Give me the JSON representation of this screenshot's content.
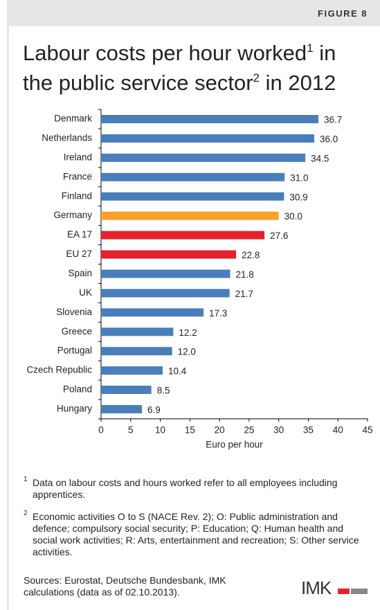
{
  "header": {
    "figure": "FIGURE 8"
  },
  "chart_data": {
    "type": "bar",
    "orientation": "horizontal",
    "title": {
      "part1": "Labour costs per hour worked",
      "note1": "1",
      "part2": "in",
      "part3": "the public service sector",
      "note2": "2",
      "part4": "in 2012"
    },
    "categories": [
      "Denmark",
      "Netherlands",
      "Ireland",
      "France",
      "Finland",
      "Germany",
      "EA 17",
      "EU 27",
      "Spain",
      "UK",
      "Slovenia",
      "Greece",
      "Portugal",
      "Czech Republic",
      "Poland",
      "Hungary"
    ],
    "values": [
      36.7,
      36.0,
      34.5,
      31.0,
      30.9,
      30.0,
      27.6,
      22.8,
      21.8,
      21.7,
      17.3,
      12.2,
      12.0,
      10.4,
      8.5,
      6.9
    ],
    "value_labels": [
      "36.7",
      "36.0",
      "34.5",
      "31.0",
      "30.9",
      "30.0",
      "27.6",
      "22.8",
      "21.8",
      "21.7",
      "17.3",
      "12.2",
      "12.0",
      "10.4",
      "8.5",
      "6.9"
    ],
    "colors": [
      "#4a7ebb",
      "#4a7ebb",
      "#4a7ebb",
      "#4a7ebb",
      "#4a7ebb",
      "#f7a02a",
      "#e5222c",
      "#e5222c",
      "#4a7ebb",
      "#4a7ebb",
      "#4a7ebb",
      "#4a7ebb",
      "#4a7ebb",
      "#4a7ebb",
      "#4a7ebb",
      "#4a7ebb"
    ],
    "x_label": "Euro per hour",
    "xlim": [
      0,
      45
    ],
    "xticks": [
      0,
      5,
      10,
      15,
      20,
      25,
      30,
      35,
      40,
      45
    ],
    "grid": false
  },
  "footnotes": [
    {
      "number": "1",
      "text": "Data on labour costs and hours worked refer to all employees including apprentices."
    },
    {
      "number": "2",
      "text": "Economic activities O to S (NACE Rev. 2); O: Public administration and defence; compulsory social security; P: Education; Q: Human health and social work activities; R: Arts, entertainment and recreation; S: Other service activities."
    }
  ],
  "sources": "Sources: Eurostat, Deutsche Bundesbank, IMK calculations (data as of 02.10.2013).",
  "logo": "IMK"
}
